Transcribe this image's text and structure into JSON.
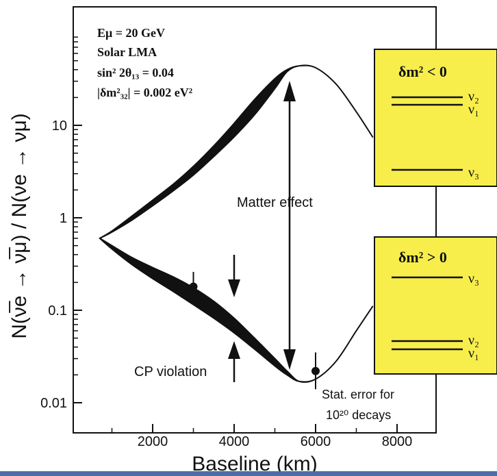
{
  "chart_data": {
    "type": "line",
    "title": "",
    "xlabel": "Baseline (km)",
    "ylabel": "N(ν̅e → ν̅μ) / N(νe → νμ)",
    "xlim": [
      0,
      8500
    ],
    "ylim": [
      0.005,
      100
    ],
    "yscale": "log",
    "x_ticks": [
      2000,
      4000,
      6000,
      8000
    ],
    "x_tick_labels": [
      "2000",
      "4000",
      "6000",
      "8000"
    ],
    "y_ticks": [
      0.01,
      0.1,
      1,
      10
    ],
    "y_tick_labels": [
      "0.01",
      "0.1",
      "1",
      "10"
    ],
    "params_box": {
      "line1": "Eμ = 20 GeV",
      "line2": "Solar LMA",
      "line3": "sin² 2θ₁₃ = 0.04",
      "line4": "|δm²₃₂| = 0.002 eV²"
    },
    "series": [
      {
        "band": true,
        "x": [
          700,
          1000,
          1500,
          2000,
          2500,
          3000,
          3500,
          4000,
          4500,
          5000,
          5300,
          5600,
          6000,
          6500,
          7000,
          7400
        ],
        "upper": [
          0.6,
          0.72,
          1.05,
          1.55,
          2.3,
          3.6,
          6.0,
          10.5,
          19,
          32,
          40,
          44,
          42,
          28,
          14,
          7.5
        ],
        "lower": [
          0.6,
          0.7,
          0.95,
          1.35,
          1.95,
          2.9,
          4.6,
          7.5,
          13,
          25,
          38,
          44,
          42,
          28,
          14,
          7.5
        ]
      },
      {
        "band": true,
        "x": [
          700,
          1000,
          1500,
          2000,
          2500,
          3000,
          3500,
          4000,
          4500,
          5000,
          5300,
          5600,
          6000,
          6500,
          7000,
          7400
        ],
        "upper": [
          0.6,
          0.5,
          0.37,
          0.29,
          0.23,
          0.175,
          0.125,
          0.082,
          0.05,
          0.03,
          0.022,
          0.017,
          0.018,
          0.028,
          0.06,
          0.11
        ],
        "lower": [
          0.6,
          0.46,
          0.31,
          0.22,
          0.16,
          0.115,
          0.082,
          0.057,
          0.038,
          0.025,
          0.02,
          0.017,
          0.018,
          0.028,
          0.06,
          0.11
        ]
      }
    ],
    "error_points": [
      {
        "x": 3000,
        "y": 0.18,
        "y_low": 0.12,
        "y_high": 0.26
      },
      {
        "x": 6000,
        "y": 0.022,
        "y_low": 0.014,
        "y_high": 0.035
      }
    ],
    "annotations": {
      "matter_effect": "Matter effect",
      "cp_violation": "CP violation",
      "stat_line1": "Stat. error for",
      "stat_line2": "10²⁰ decays"
    }
  },
  "hierarchy_boxes": {
    "inverted": {
      "label": "δm² < 0",
      "nu2": "ν₂",
      "nu1": "ν₁",
      "nu3": "ν₃"
    },
    "normal": {
      "label": "δm² > 0",
      "nu3": "ν₃",
      "nu2": "ν₂",
      "nu1": "ν₁"
    }
  },
  "colors": {
    "band": "#111111",
    "axis": "#111111",
    "hierarchy_box_fill": "#f7ee4c",
    "bottom_strip": "#4a6ea8"
  }
}
